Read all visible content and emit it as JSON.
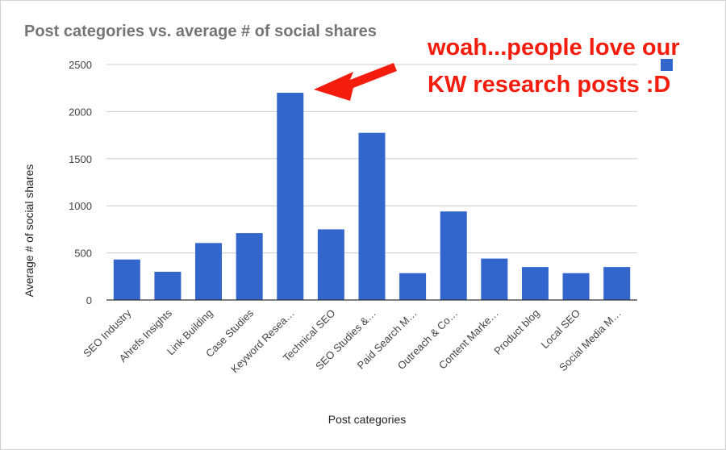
{
  "chart_data": {
    "type": "bar",
    "title": "Post categories vs. average # of social shares",
    "xlabel": "Post categories",
    "ylabel": "Average # of social shares",
    "ylim": [
      0,
      2500
    ],
    "yticks": [
      "0",
      "500",
      "1000",
      "1500",
      "2000",
      "2500"
    ],
    "grid": true,
    "legend": "top-right",
    "bar_color": "#3366cc",
    "categories": [
      "SEO Industry",
      "Ahrefs Insights",
      "Link Building",
      "Case Studies",
      "Keyword Resea…",
      "Technical SEO",
      "SEO Studies &…",
      "Paid Search M…",
      "Outreach & Co…",
      "Content Marke…",
      "Product blog",
      "Local SEO",
      "Social Media M…"
    ],
    "values": [
      430,
      300,
      605,
      710,
      2200,
      750,
      1775,
      285,
      940,
      440,
      350,
      285,
      350
    ]
  },
  "annotation": {
    "text": "woah...people love our KW research posts :D",
    "color": "#f41c0c"
  }
}
